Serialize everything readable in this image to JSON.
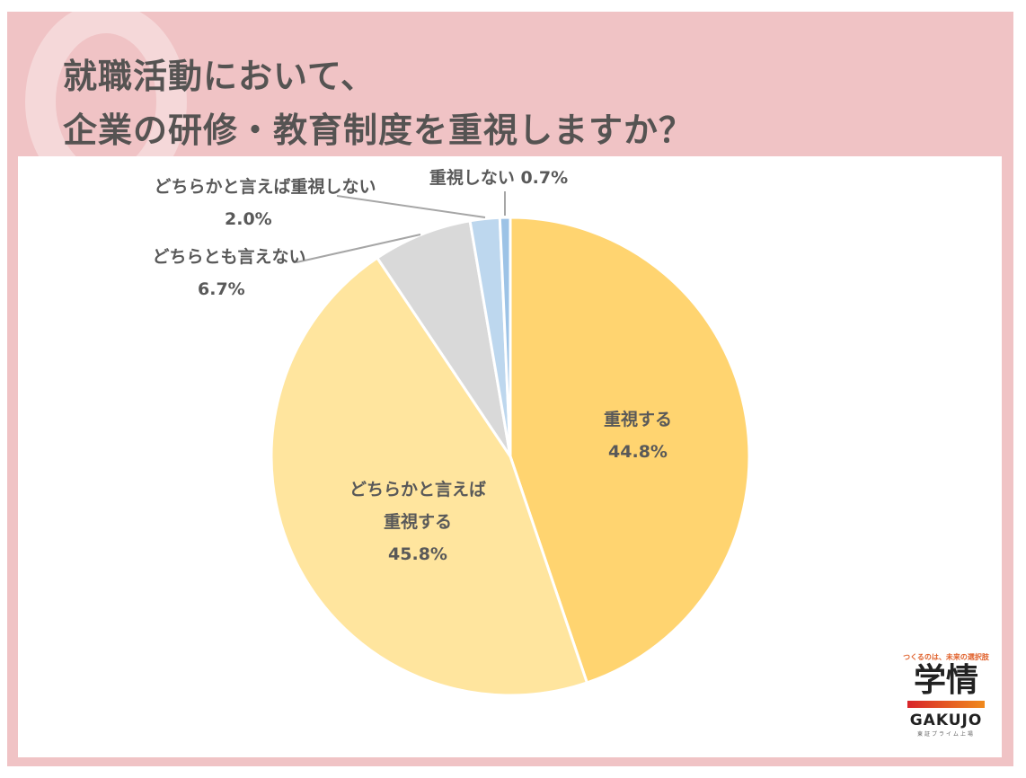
{
  "header": {
    "title_line1": "就職活動において、",
    "title_line2": "企業の研修・教育制度を重視しますか？"
  },
  "chart_data": {
    "type": "pie",
    "title": "就職活動において、企業の研修・教育制度を重視しますか？",
    "start_angle": "12 o'clock",
    "direction": "clockwise",
    "categories": [
      "重視する",
      "どちらかと言えば重視する",
      "どちらとも言えない",
      "どちらかと言えば重視しない",
      "重視しない"
    ],
    "values": [
      44.8,
      45.8,
      6.7,
      2.0,
      0.7
    ],
    "unit": "%",
    "colors": [
      "#ffd470",
      "#ffe59e",
      "#d9d9d9",
      "#bdd7ee",
      "#9dc3e6"
    ]
  },
  "labels": {
    "s0_name": "重視する",
    "s0_value": "44.8%",
    "s1_name1": "どちらかと言えば",
    "s1_name2": "重視する",
    "s1_value": "45.8%",
    "s2_name": "どちらとも言えない",
    "s2_value": "6.7%",
    "s3_name": "どちらかと言えば重視しない",
    "s3_value": "2.0%",
    "s4_name_value": "重視しない 0.7%"
  },
  "logo": {
    "tagline": "つくるのは、未来の選択肢",
    "name_ja": "学情",
    "name_en": "GAKUJO",
    "sub": "東証プライム上場"
  }
}
